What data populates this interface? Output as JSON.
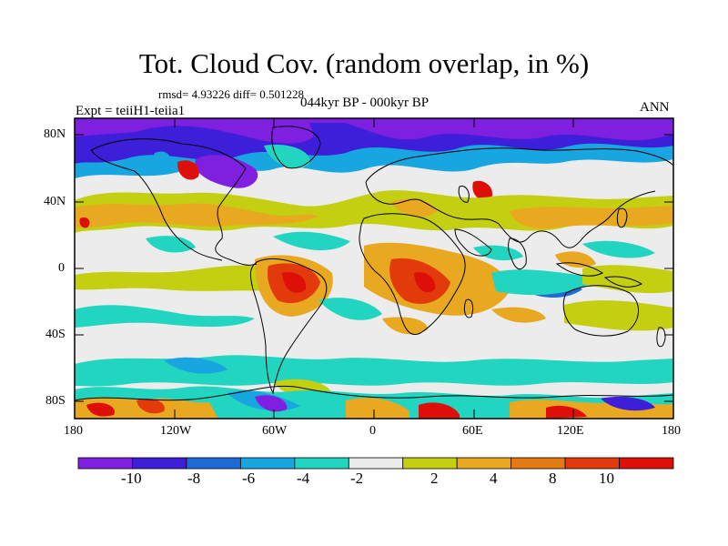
{
  "header": {
    "title": "Tot. Cloud Cov. (random overlap, in %)",
    "stats": "rmsd= 4.93226 diff= 0.501228",
    "experiment": "Expt = teiiH1-teiia1",
    "period": "044kyr BP - 000kyr BP",
    "season": "ANN"
  },
  "map_axes": {
    "lat_ticks": [
      "80N",
      "40N",
      "0",
      "40S",
      "80S"
    ],
    "lon_ticks": [
      "180",
      "120W",
      "60W",
      "0",
      "60E",
      "120E",
      "180"
    ]
  },
  "colorbar": {
    "labels": [
      "-10",
      "-8",
      "-6",
      "-4",
      "-2",
      "2",
      "4",
      "8",
      "10"
    ],
    "colors": [
      "#7f1fe0",
      "#3d1fd9",
      "#1f6ad9",
      "#18a6e0",
      "#22d5c0",
      "#ececec",
      "#c5cf12",
      "#e8a820",
      "#e47a12",
      "#e33a0c",
      "#dd0f08"
    ]
  }
}
